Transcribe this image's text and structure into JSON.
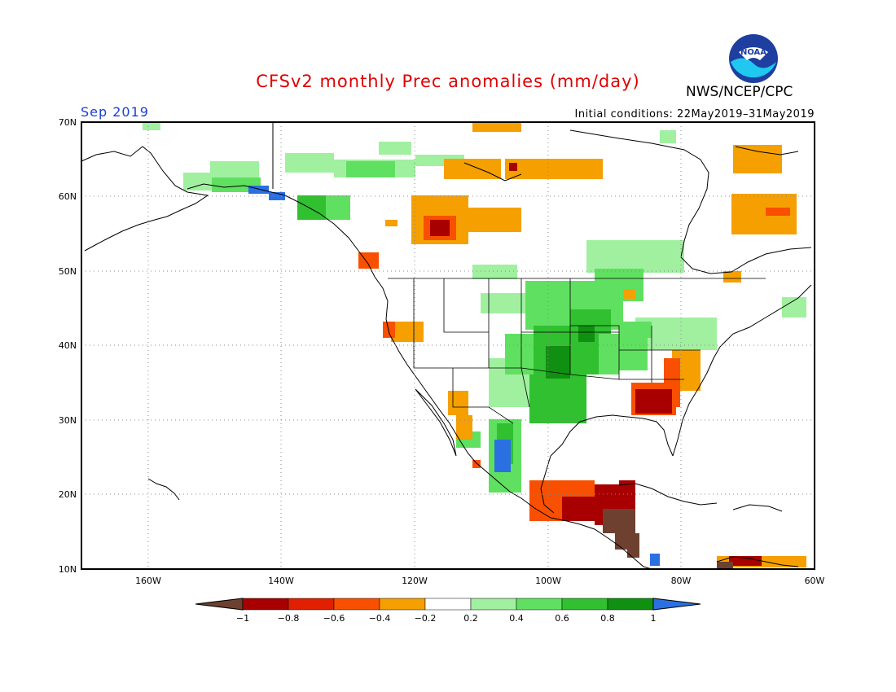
{
  "title": "CFSv2 monthly Prec anomalies (mm/day)",
  "agency": "NWS/NCEP/CPC",
  "logo_text": "NOAA",
  "period": "Sep 2019",
  "initial_conditions": "Initial conditions: 22May2019–31May2019",
  "lat_labels": [
    "70N",
    "60N",
    "50N",
    "40N",
    "30N",
    "20N",
    "10N"
  ],
  "lon_labels": [
    "160W",
    "140W",
    "120W",
    "100W",
    "80W",
    "60W"
  ],
  "colorbar": {
    "labels": [
      "−1",
      "−0.8",
      "−0.6",
      "−0.4",
      "−0.2",
      "0.2",
      "0.4",
      "0.6",
      "0.8",
      "1"
    ],
    "colors": [
      "#6e4030",
      "#a80000",
      "#e02000",
      "#f85000",
      "#f5a000",
      "#ffffff",
      "#a0f0a0",
      "#60e060",
      "#30c030",
      "#109010",
      "#2a70e0"
    ]
  },
  "map_extent": {
    "lon_min": -170,
    "lon_max": -60,
    "lat_min": 10,
    "lat_max": 70
  }
}
